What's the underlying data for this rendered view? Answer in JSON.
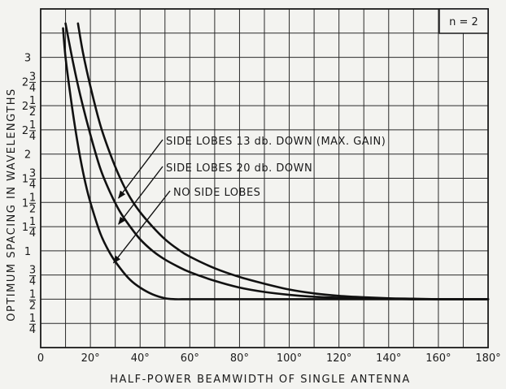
{
  "chart_data": {
    "type": "line",
    "xlabel": "HALF-POWER BEAMWIDTH OF SINGLE ANTENNA",
    "ylabel": "OPTIMUM SPACING IN WAVELENGTHS",
    "xlim": [
      0,
      180
    ],
    "ylim": [
      0,
      3.5
    ],
    "grid": true,
    "x_ticks": [
      {
        "value": 0,
        "label": "0"
      },
      {
        "value": 20,
        "label": "20°"
      },
      {
        "value": 40,
        "label": "40°"
      },
      {
        "value": 60,
        "label": "60°"
      },
      {
        "value": 80,
        "label": "80°"
      },
      {
        "value": 100,
        "label": "100°"
      },
      {
        "value": 120,
        "label": "120°"
      },
      {
        "value": 140,
        "label": "140°"
      },
      {
        "value": 160,
        "label": "160°"
      },
      {
        "value": 180,
        "label": "180°"
      }
    ],
    "y_ticks": [
      {
        "value": 0.25,
        "whole": "",
        "num": "1",
        "den": "4"
      },
      {
        "value": 0.5,
        "whole": "",
        "num": "1",
        "den": "2"
      },
      {
        "value": 0.75,
        "whole": "",
        "num": "3",
        "den": "4"
      },
      {
        "value": 1.0,
        "whole": "1",
        "num": "",
        "den": ""
      },
      {
        "value": 1.25,
        "whole": "1",
        "num": "1",
        "den": "4"
      },
      {
        "value": 1.5,
        "whole": "1",
        "num": "1",
        "den": "2"
      },
      {
        "value": 1.75,
        "whole": "1",
        "num": "3",
        "den": "4"
      },
      {
        "value": 2.0,
        "whole": "2",
        "num": "",
        "den": ""
      },
      {
        "value": 2.25,
        "whole": "2",
        "num": "1",
        "den": "4"
      },
      {
        "value": 2.5,
        "whole": "2",
        "num": "1",
        "den": "2"
      },
      {
        "value": 2.75,
        "whole": "2",
        "num": "3",
        "den": "4"
      },
      {
        "value": 3.0,
        "whole": "3",
        "num": "",
        "den": ""
      }
    ],
    "box_label": "n = 2",
    "series": [
      {
        "name": "SIDE LOBES 13 db. DOWN  (MAX. GAIN)",
        "x": [
          15,
          17,
          20,
          24,
          28,
          32,
          36,
          40,
          45,
          50,
          55,
          60,
          70,
          80,
          90,
          100,
          110,
          120,
          130,
          140,
          150,
          160,
          170,
          180
        ],
        "y": [
          3.35,
          3.05,
          2.7,
          2.3,
          2.0,
          1.75,
          1.55,
          1.4,
          1.25,
          1.12,
          1.02,
          0.94,
          0.82,
          0.73,
          0.66,
          0.6,
          0.56,
          0.535,
          0.52,
          0.51,
          0.505,
          0.5,
          0.5,
          0.5
        ],
        "label_at": [
          30,
          1.57
        ]
      },
      {
        "name": "SIDE LOBES 20 db. DOWN",
        "x": [
          10,
          13,
          16,
          20,
          24,
          28,
          32,
          36,
          40,
          45,
          50,
          55,
          60,
          70,
          80,
          90,
          100,
          110,
          120,
          130,
          140,
          150,
          160,
          170,
          180
        ],
        "y": [
          3.35,
          2.95,
          2.6,
          2.2,
          1.85,
          1.6,
          1.4,
          1.25,
          1.12,
          1.0,
          0.91,
          0.84,
          0.78,
          0.69,
          0.62,
          0.575,
          0.545,
          0.525,
          0.515,
          0.51,
          0.505,
          0.5,
          0.5,
          0.5,
          0.5
        ],
        "label_at": [
          30,
          1.3
        ]
      },
      {
        "name": "NO SIDE LOBES",
        "x": [
          9,
          10,
          12,
          14,
          16,
          18,
          20,
          24,
          28,
          32,
          36,
          40,
          45,
          50,
          54,
          58,
          60,
          80,
          100,
          120,
          140,
          160,
          180
        ],
        "y": [
          3.3,
          3.0,
          2.6,
          2.25,
          1.95,
          1.7,
          1.5,
          1.18,
          0.97,
          0.82,
          0.7,
          0.62,
          0.55,
          0.51,
          0.5,
          0.5,
          0.5,
          0.5,
          0.5,
          0.5,
          0.5,
          0.5,
          0.5
        ],
        "label_at": [
          28,
          0.9
        ]
      }
    ]
  }
}
